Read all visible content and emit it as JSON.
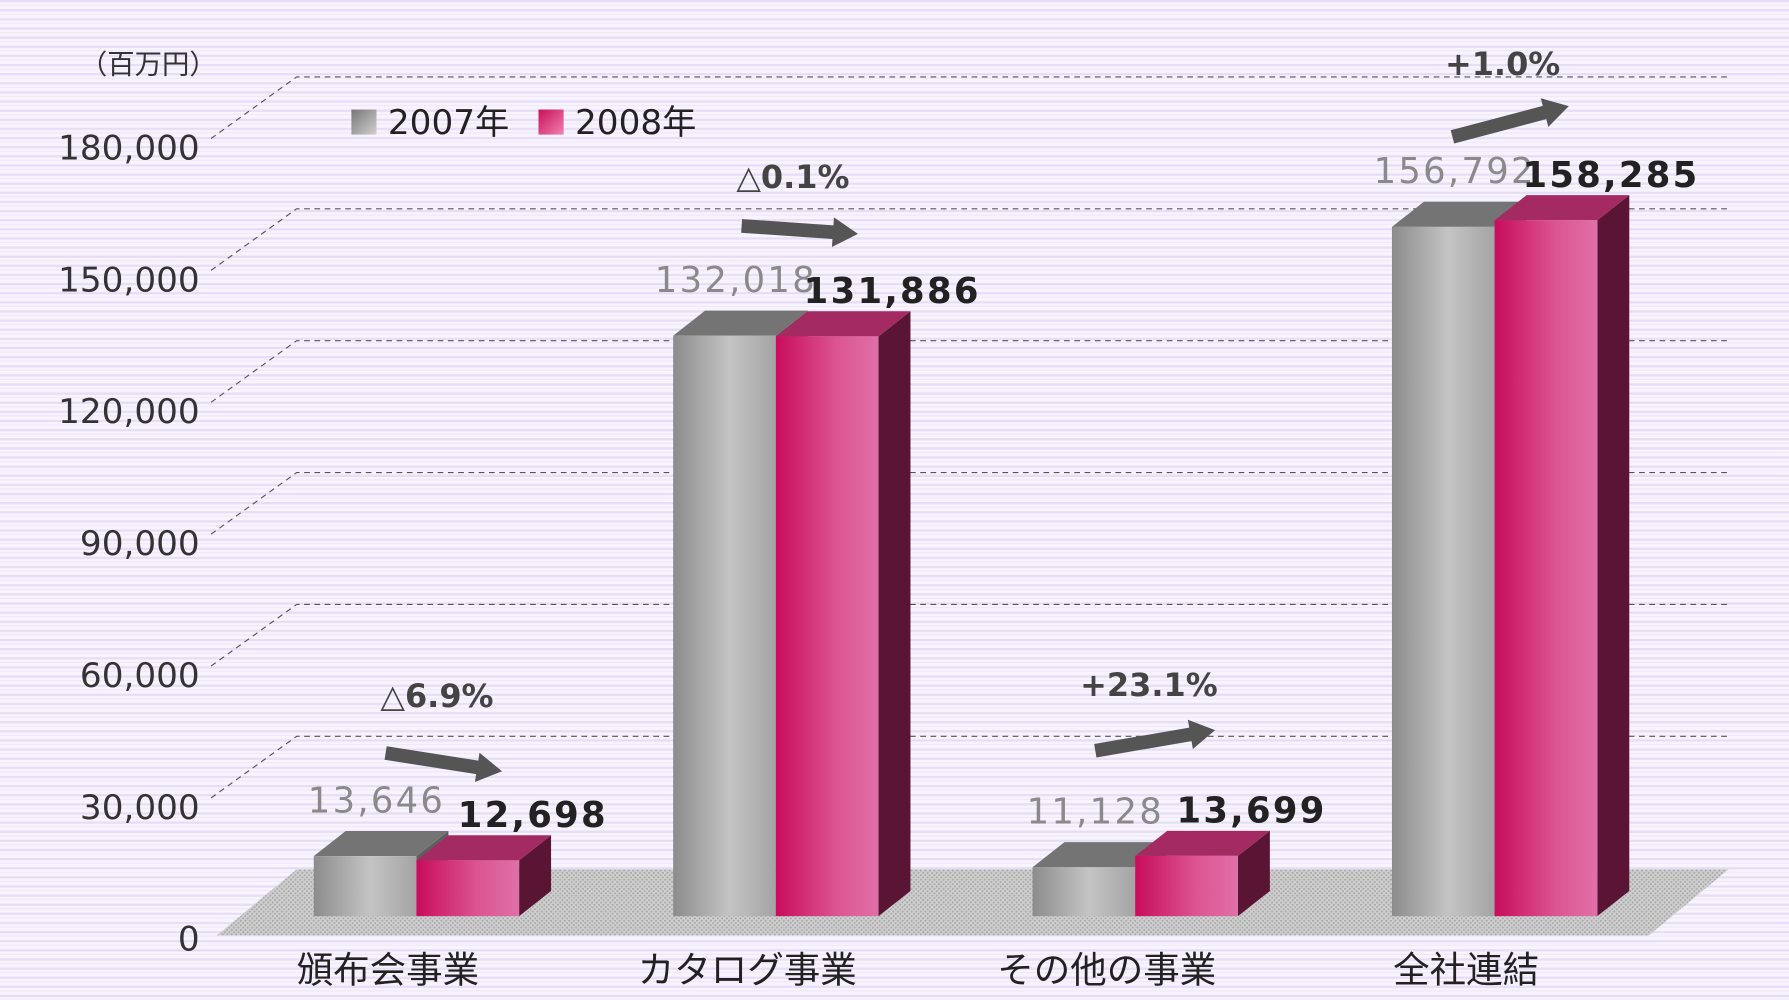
{
  "chart_data": {
    "type": "bar3d",
    "y_unit_label": "（百万円）",
    "categories": [
      "頒布会事業",
      "カタログ事業",
      "その他の事業",
      "全社連結"
    ],
    "series": [
      {
        "name": "2007年",
        "color": "#a8a8a8",
        "values": [
          13646,
          132018,
          11128,
          156792
        ],
        "value_labels": [
          "13,646",
          "132,018",
          "11,128",
          "156,792"
        ]
      },
      {
        "name": "2008年",
        "color": "#d6226f",
        "values": [
          12698,
          131886,
          13699,
          158285
        ],
        "value_labels": [
          "12,698",
          "131,886",
          "13,699",
          "158,285"
        ]
      }
    ],
    "annotations": [
      "△6.9%",
      "△0.1%",
      "+23.1%",
      "+1.0%"
    ],
    "ylim": [
      0,
      180000
    ],
    "yticks": [
      0,
      {
        "value": 30000,
        "label": "30,000"
      },
      {
        "value": 60000,
        "label": "60,000"
      },
      {
        "value": 90000,
        "label": "90,000"
      },
      {
        "value": 120000,
        "label": "120,000"
      },
      {
        "value": 150000,
        "label": "150,000"
      },
      {
        "value": 180000,
        "label": "180,000"
      }
    ],
    "grid": true,
    "legend": "top-left"
  }
}
